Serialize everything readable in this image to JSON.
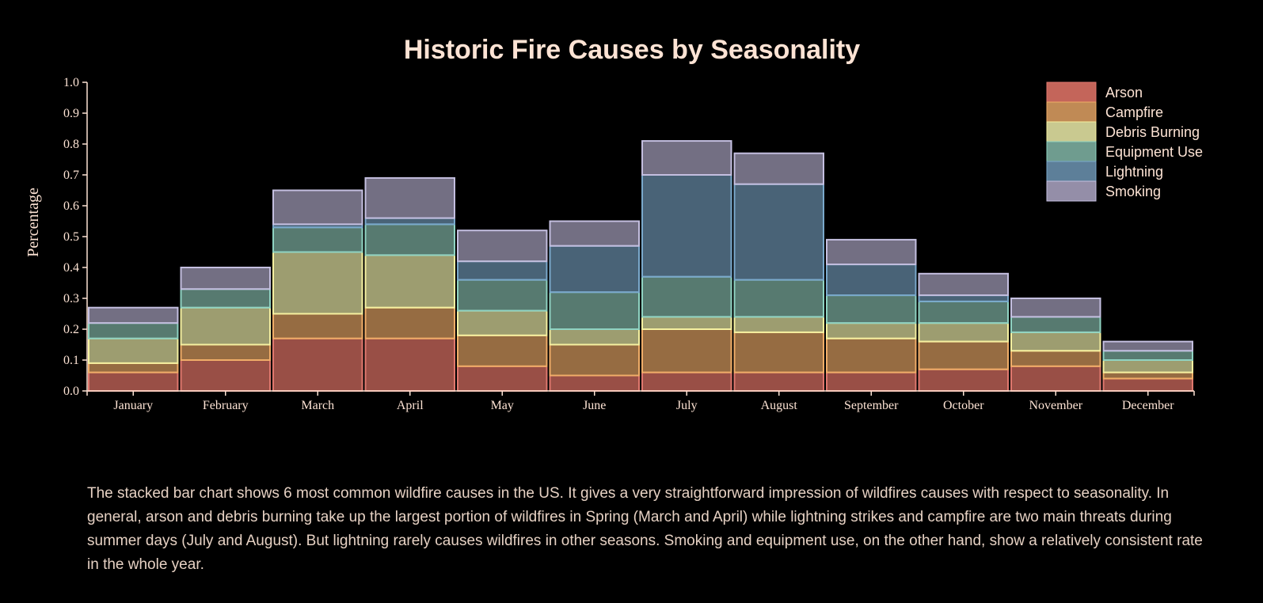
{
  "chart_data": {
    "type": "bar",
    "stacked": true,
    "title": "Historic Fire Causes by Seasonality",
    "xlabel": "",
    "ylabel": "Percentage",
    "ylim": [
      0,
      1
    ],
    "yticks": [
      "0.0",
      "0.1",
      "0.2",
      "0.3",
      "0.4",
      "0.5",
      "0.6",
      "0.7",
      "0.8",
      "0.9",
      "1.0"
    ],
    "grid": false,
    "legend_position": "top-right",
    "categories": [
      "January",
      "February",
      "March",
      "April",
      "May",
      "June",
      "July",
      "August",
      "September",
      "October",
      "November",
      "December"
    ],
    "series": [
      {
        "name": "Arson",
        "fill": "#c4655a",
        "stroke": "#e0786e",
        "values": [
          0.06,
          0.1,
          0.17,
          0.17,
          0.08,
          0.05,
          0.06,
          0.06,
          0.06,
          0.07,
          0.08,
          0.04
        ]
      },
      {
        "name": "Campfire",
        "fill": "#c08a55",
        "stroke": "#f0ad68",
        "values": [
          0.03,
          0.05,
          0.08,
          0.1,
          0.1,
          0.1,
          0.14,
          0.13,
          0.11,
          0.09,
          0.05,
          0.02
        ]
      },
      {
        "name": "Debris Burning",
        "fill": "#c9c990",
        "stroke": "#f5f0a0",
        "values": [
          0.08,
          0.12,
          0.2,
          0.17,
          0.08,
          0.05,
          0.04,
          0.05,
          0.05,
          0.06,
          0.06,
          0.04
        ]
      },
      {
        "name": "Equipment Use",
        "fill": "#6f9c8f",
        "stroke": "#8fd3c2",
        "values": [
          0.05,
          0.06,
          0.08,
          0.1,
          0.1,
          0.12,
          0.13,
          0.12,
          0.09,
          0.07,
          0.05,
          0.03
        ]
      },
      {
        "name": "Lightning",
        "fill": "#5d7f99",
        "stroke": "#7aa9cc",
        "values": [
          0.0,
          0.0,
          0.01,
          0.02,
          0.06,
          0.15,
          0.33,
          0.31,
          0.1,
          0.02,
          0.0,
          0.0
        ]
      },
      {
        "name": "Smoking",
        "fill": "#948ea8",
        "stroke": "#c4bfe0",
        "values": [
          0.05,
          0.07,
          0.11,
          0.13,
          0.1,
          0.08,
          0.11,
          0.1,
          0.08,
          0.07,
          0.06,
          0.03
        ]
      }
    ]
  },
  "description": "The stacked bar chart shows 6 most common wildfire causes in the US. It gives a very straightforward impression of wildfires causes with respect to seasonality. In general, arson and debris burning take up the largest portion of wildfires in Spring (March and April) while lightning strikes and campfire are two main threats during summer days (July and August). But lightning rarely causes wildfires in other seasons. Smoking and equipment use, on the other hand, show a relatively consistent rate in the whole year."
}
